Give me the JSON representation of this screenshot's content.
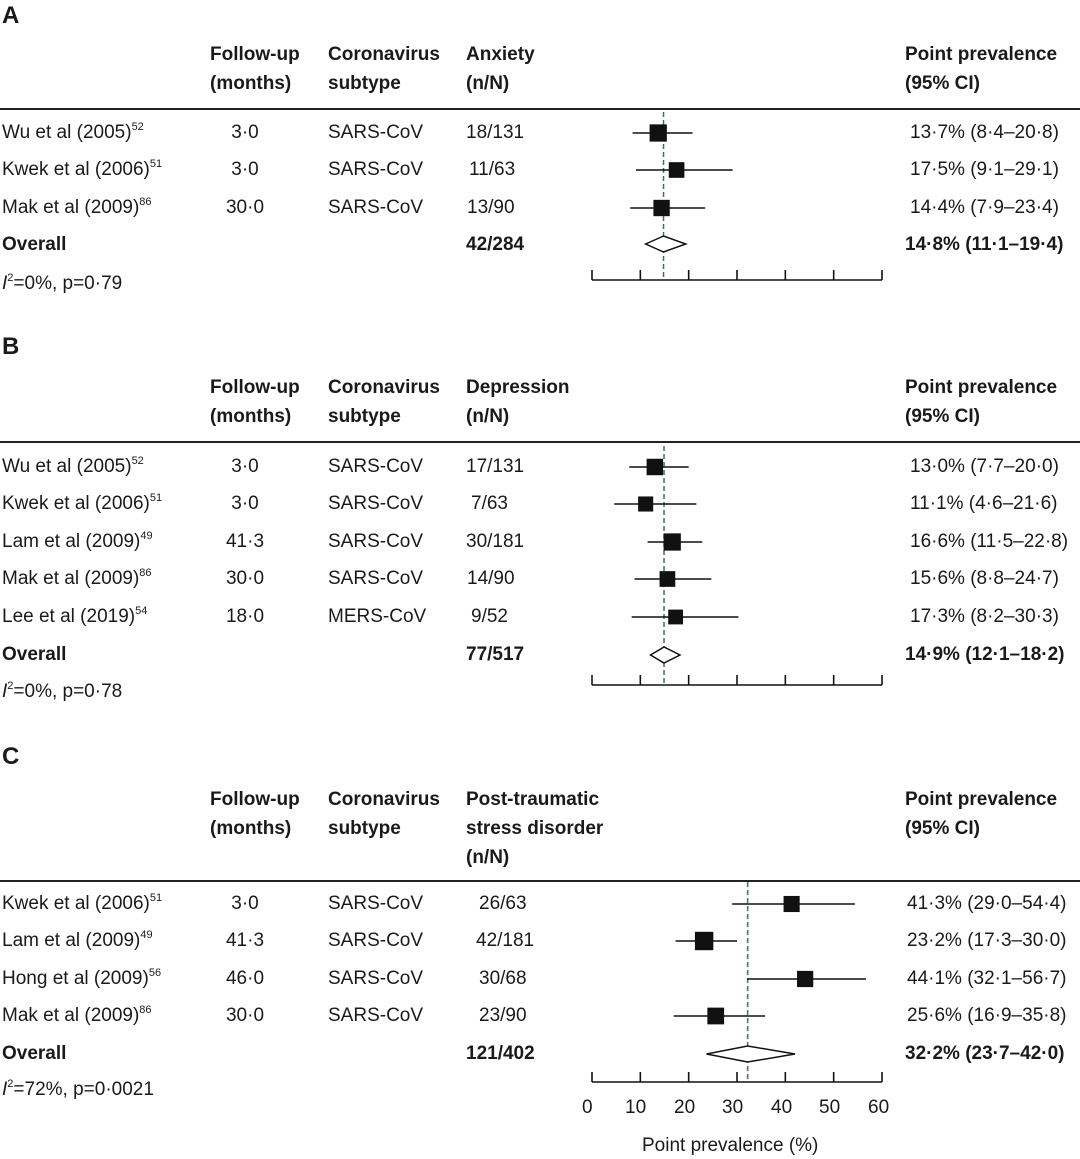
{
  "panels": [
    {
      "letter": "A",
      "headers": {
        "followup": [
          "Follow-up",
          "(months)"
        ],
        "subtype": [
          "Coronavirus",
          "subtype"
        ],
        "outcome": [
          "Anxiety",
          "(n/N)"
        ],
        "prevalence": [
          "Point prevalence",
          "(95% CI)"
        ]
      },
      "studies": [
        {
          "study": "Wu et al (2005)",
          "ref": "52",
          "followup": "3·0",
          "subtype": "SARS-CoV",
          "nN": "18/131",
          "prev_text": "13·7% (8·4–20·8)"
        },
        {
          "study": "Kwek et al (2006)",
          "ref": "51",
          "followup": "3·0",
          "subtype": "SARS-CoV",
          "nN": "11/63",
          "prev_text": "17·5% (9·1–29·1)"
        },
        {
          "study": "Mak et al (2009)",
          "ref": "86",
          "followup": "30·0",
          "subtype": "SARS-CoV",
          "nN": "13/90",
          "prev_text": "14·4% (7·9–23·4)"
        }
      ],
      "overall": {
        "label": "Overall",
        "nN": "42/284",
        "prev_text": "14·8% (11·1–19·4)"
      },
      "heterogeneity": {
        "i2_symbol": "I",
        "i2_sup": "2",
        "text": "=0%, p=0·79"
      }
    },
    {
      "letter": "B",
      "headers": {
        "followup": [
          "Follow-up",
          "(months)"
        ],
        "subtype": [
          "Coronavirus",
          "subtype"
        ],
        "outcome": [
          "Depression",
          "(n/N)"
        ],
        "prevalence": [
          "Point prevalence",
          "(95% CI)"
        ]
      },
      "studies": [
        {
          "study": "Wu et al (2005)",
          "ref": "52",
          "followup": "3·0",
          "subtype": "SARS-CoV",
          "nN": "17/131",
          "prev_text": "13·0% (7·7–20·0)"
        },
        {
          "study": "Kwek et al (2006)",
          "ref": "51",
          "followup": "3·0",
          "subtype": "SARS-CoV",
          "nN": "7/63",
          "prev_text": "11·1% (4·6–21·6)"
        },
        {
          "study": "Lam et al (2009)",
          "ref": "49",
          "followup": "41·3",
          "subtype": "SARS-CoV",
          "nN": "30/181",
          "prev_text": "16·6% (11·5–22·8)"
        },
        {
          "study": "Mak et al (2009)",
          "ref": "86",
          "followup": "30·0",
          "subtype": "SARS-CoV",
          "nN": "14/90",
          "prev_text": "15·6% (8·8–24·7)"
        },
        {
          "study": "Lee et al (2019)",
          "ref": "54",
          "followup": "18·0",
          "subtype": "MERS-CoV",
          "nN": "9/52",
          "prev_text": "17·3% (8·2–30·3)"
        }
      ],
      "overall": {
        "label": "Overall",
        "nN": "77/517",
        "prev_text": "14·9% (12·1–18·2)"
      },
      "heterogeneity": {
        "i2_symbol": "I",
        "i2_sup": "2",
        "text": "=0%, p=0·78"
      }
    },
    {
      "letter": "C",
      "headers": {
        "followup": [
          "Follow-up",
          "(months)"
        ],
        "subtype": [
          "Coronavirus",
          "subtype"
        ],
        "outcome": [
          "Post-traumatic",
          "stress disorder",
          "(n/N)"
        ],
        "prevalence": [
          "Point prevalence",
          "(95% CI)"
        ]
      },
      "studies": [
        {
          "study": "Kwek et al (2006)",
          "ref": "51",
          "followup": "3·0",
          "subtype": "SARS-CoV",
          "nN": "26/63",
          "prev_text": "41·3% (29·0–54·4)"
        },
        {
          "study": "Lam et al (2009)",
          "ref": "49",
          "followup": "41·3",
          "subtype": "SARS-CoV",
          "nN": "42/181",
          "prev_text": "23·2% (17·3–30·0)"
        },
        {
          "study": "Hong et al (2009)",
          "ref": "56",
          "followup": "46·0",
          "subtype": "SARS-CoV",
          "nN": "30/68",
          "prev_text": "44·1% (32·1–56·7)"
        },
        {
          "study": "Mak et al (2009)",
          "ref": "86",
          "followup": "30·0",
          "subtype": "SARS-CoV",
          "nN": "23/90",
          "prev_text": "25·6% (16·9–35·8)"
        }
      ],
      "overall": {
        "label": "Overall",
        "nN": "121/402",
        "prev_text": "32·2% (23·7–42·0)"
      },
      "heterogeneity": {
        "i2_symbol": "I",
        "i2_sup": "2",
        "text": "=72%, p=0·0021"
      }
    }
  ],
  "x_axis": {
    "ticks": [
      0,
      10,
      20,
      30,
      40,
      50,
      60
    ],
    "label": "Point prevalence (%)"
  },
  "chart_data": [
    {
      "type": "forest",
      "title": "A — Anxiety",
      "xlabel": "Point prevalence (%)",
      "xlim": [
        0,
        60
      ],
      "categories": [
        "Wu et al (2005)",
        "Kwek et al (2006)",
        "Mak et al (2009)"
      ],
      "values": [
        13.7,
        17.5,
        14.4
      ],
      "ci_low": [
        8.4,
        9.1,
        7.9
      ],
      "ci_high": [
        20.8,
        29.1,
        23.4
      ],
      "weights": [
        131,
        63,
        90
      ],
      "overall": {
        "value": 14.8,
        "ci_low": 11.1,
        "ci_high": 19.4
      }
    },
    {
      "type": "forest",
      "title": "B — Depression",
      "xlabel": "Point prevalence (%)",
      "xlim": [
        0,
        60
      ],
      "categories": [
        "Wu et al (2005)",
        "Kwek et al (2006)",
        "Lam et al (2009)",
        "Mak et al (2009)",
        "Lee et al (2019)"
      ],
      "values": [
        13.0,
        11.1,
        16.6,
        15.6,
        17.3
      ],
      "ci_low": [
        7.7,
        4.6,
        11.5,
        8.8,
        8.2
      ],
      "ci_high": [
        20.0,
        21.6,
        22.8,
        24.7,
        30.3
      ],
      "weights": [
        131,
        63,
        181,
        90,
        52
      ],
      "overall": {
        "value": 14.9,
        "ci_low": 12.1,
        "ci_high": 18.2
      }
    },
    {
      "type": "forest",
      "title": "C — Post-traumatic stress disorder",
      "xlabel": "Point prevalence (%)",
      "xlim": [
        0,
        60
      ],
      "categories": [
        "Kwek et al (2006)",
        "Lam et al (2009)",
        "Hong et al (2009)",
        "Mak et al (2009)"
      ],
      "values": [
        41.3,
        23.2,
        44.1,
        25.6
      ],
      "ci_low": [
        29.0,
        17.3,
        32.1,
        16.9
      ],
      "ci_high": [
        54.4,
        30.0,
        56.7,
        35.8
      ],
      "weights": [
        63,
        181,
        68,
        90
      ],
      "overall": {
        "value": 32.2,
        "ci_low": 23.7,
        "ci_high": 42.0
      }
    }
  ]
}
